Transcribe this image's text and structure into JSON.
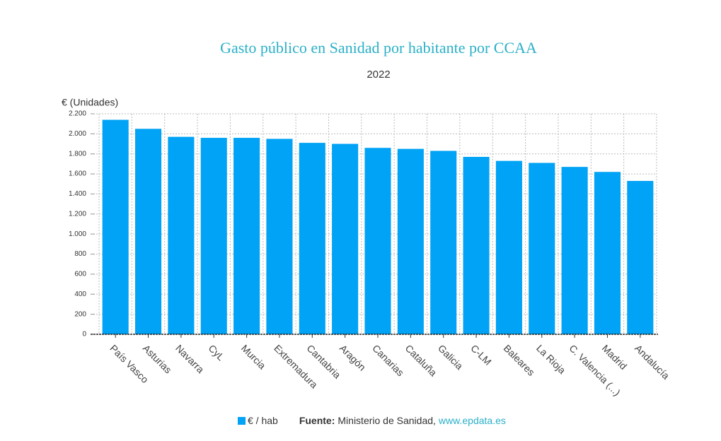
{
  "chart_data": {
    "type": "bar",
    "title": "Gasto público en Sanidad por habitante por CCAA",
    "subtitle": "2022",
    "y_axis_label": "€ (Unidades)",
    "categories": [
      "País Vasco",
      "Asturias",
      "Navarra",
      "CyL",
      "Murcia",
      "Extremadura",
      "Cantabria",
      "Aragón",
      "Canarias",
      "Cataluña",
      "Galicia",
      "C-LM",
      "Baleares",
      "La Rioja",
      "C. Valencia (...)",
      "Madrid",
      "Andalucía"
    ],
    "series": [
      {
        "name": "€ / hab",
        "color": "#00a3f5",
        "values": [
          2140,
          2050,
          1970,
          1960,
          1960,
          1950,
          1910,
          1900,
          1860,
          1850,
          1830,
          1770,
          1730,
          1710,
          1670,
          1620,
          1530
        ]
      }
    ],
    "ylim": [
      0,
      2200
    ],
    "yticks": [
      0,
      200,
      400,
      600,
      800,
      {
        "value": 1000,
        "label": "1.000"
      },
      {
        "value": 1200,
        "label": "1.200"
      },
      {
        "value": 1400,
        "label": "1.400"
      },
      {
        "value": 1600,
        "label": "1.600"
      },
      {
        "value": 1800,
        "label": "1.800"
      },
      {
        "value": 2000,
        "label": "2.000"
      },
      {
        "value": 2200,
        "label": "2.200"
      }
    ],
    "grid": true,
    "source_label": "Fuente:",
    "source": "Ministerio de Sanidad,",
    "source_link": "www.epdata.es"
  }
}
